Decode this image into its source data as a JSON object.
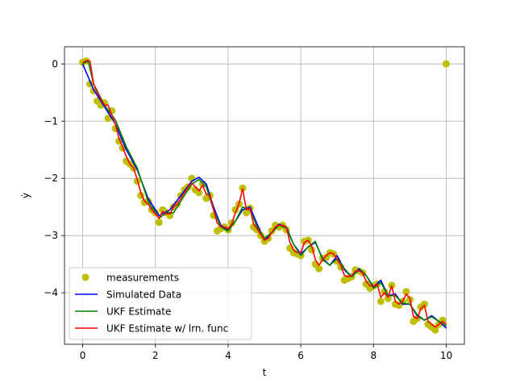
{
  "chart_data": {
    "type": "line",
    "title": "",
    "xlabel": "t",
    "ylabel": "ẏ",
    "xlim": [
      -0.5,
      10.5
    ],
    "ylim": [
      -4.9,
      0.3
    ],
    "xticks": [
      0,
      2,
      4,
      6,
      8,
      10
    ],
    "yticks": [
      0,
      -1,
      -2,
      -3,
      -4
    ],
    "xtick_labels": [
      "0",
      "2",
      "4",
      "6",
      "8",
      "10"
    ],
    "ytick_labels": [
      "0",
      "−1",
      "−2",
      "−3",
      "−4"
    ],
    "grid": true,
    "legend_position": "lower-left",
    "series": [
      {
        "name": "measurements",
        "kind": "scatter",
        "color": "#bfbf00",
        "x": [
          0.0,
          0.1,
          0.2,
          0.3,
          0.4,
          0.5,
          0.6,
          0.7,
          0.8,
          0.9,
          1.0,
          1.1,
          1.2,
          1.3,
          1.4,
          1.5,
          1.6,
          1.7,
          1.8,
          1.9,
          2.0,
          2.1,
          2.2,
          2.3,
          2.4,
          2.5,
          2.6,
          2.7,
          2.8,
          2.9,
          3.0,
          3.1,
          3.2,
          3.3,
          3.4,
          3.5,
          3.6,
          3.7,
          3.8,
          3.9,
          4.0,
          4.1,
          4.2,
          4.3,
          4.4,
          4.5,
          4.6,
          4.7,
          4.8,
          4.9,
          5.0,
          5.1,
          5.2,
          5.3,
          5.4,
          5.5,
          5.6,
          5.7,
          5.8,
          5.9,
          6.0,
          6.1,
          6.2,
          6.3,
          6.4,
          6.5,
          6.6,
          6.7,
          6.8,
          6.9,
          7.0,
          7.1,
          7.2,
          7.3,
          7.4,
          7.5,
          7.6,
          7.7,
          7.8,
          7.9,
          8.0,
          8.1,
          8.2,
          8.3,
          8.4,
          8.5,
          8.6,
          8.7,
          8.8,
          8.9,
          9.0,
          9.1,
          9.2,
          9.3,
          9.4,
          9.5,
          9.6,
          9.7,
          9.8,
          9.9,
          10.0
        ],
        "y": [
          0.03,
          0.05,
          -0.35,
          -0.47,
          -0.65,
          -0.72,
          -0.68,
          -0.95,
          -0.82,
          -1.13,
          -1.35,
          -1.47,
          -1.7,
          -1.75,
          -1.82,
          -2.05,
          -2.3,
          -2.42,
          -2.4,
          -2.55,
          -2.6,
          -2.77,
          -2.55,
          -2.6,
          -2.65,
          -2.5,
          -2.45,
          -2.3,
          -2.2,
          -2.15,
          -2.0,
          -2.2,
          -2.25,
          -2.1,
          -2.35,
          -2.3,
          -2.65,
          -2.92,
          -2.88,
          -2.85,
          -2.9,
          -2.78,
          -2.55,
          -2.45,
          -2.17,
          -2.6,
          -2.52,
          -2.85,
          -2.9,
          -3.0,
          -3.1,
          -3.05,
          -2.92,
          -2.82,
          -2.85,
          -2.82,
          -2.9,
          -3.22,
          -3.3,
          -3.32,
          -3.35,
          -3.1,
          -3.08,
          -3.25,
          -3.5,
          -3.58,
          -3.4,
          -3.38,
          -3.3,
          -3.32,
          -3.45,
          -3.55,
          -3.78,
          -3.75,
          -3.72,
          -3.6,
          -3.62,
          -3.65,
          -3.85,
          -3.92,
          -3.88,
          -3.85,
          -4.15,
          -3.98,
          -4.1,
          -3.87,
          -4.2,
          -4.22,
          -4.15,
          -3.98,
          -4.12,
          -4.5,
          -4.45,
          -4.25,
          -4.2,
          -4.55,
          -4.6,
          -4.65,
          -4.55,
          -4.48,
          0.0
        ]
      },
      {
        "name": "Simulated Data",
        "kind": "line",
        "color": "#0000ff",
        "x": [
          0.0,
          0.3,
          0.6,
          0.9,
          1.2,
          1.5,
          1.8,
          2.1,
          2.4,
          2.7,
          3.0,
          3.2,
          3.4,
          3.6,
          3.8,
          4.0,
          4.2,
          4.4,
          4.6,
          4.8,
          5.0,
          5.2,
          5.4,
          5.6,
          5.8,
          6.0,
          6.2,
          6.4,
          6.6,
          6.8,
          7.0,
          7.2,
          7.4,
          7.6,
          7.8,
          8.0,
          8.2,
          8.4,
          8.6,
          8.8,
          9.0,
          9.2,
          9.4,
          9.6,
          9.8,
          10.0
        ],
        "y": [
          0.0,
          -0.45,
          -0.75,
          -1.05,
          -1.5,
          -1.85,
          -2.35,
          -2.65,
          -2.55,
          -2.3,
          -2.05,
          -1.98,
          -2.1,
          -2.5,
          -2.82,
          -2.9,
          -2.75,
          -2.55,
          -2.5,
          -2.8,
          -3.08,
          -2.95,
          -2.8,
          -2.85,
          -3.15,
          -3.32,
          -3.2,
          -3.12,
          -3.4,
          -3.52,
          -3.35,
          -3.6,
          -3.72,
          -3.58,
          -3.7,
          -3.9,
          -3.78,
          -4.05,
          -4.02,
          -4.2,
          -4.2,
          -4.4,
          -4.48,
          -4.4,
          -4.5,
          -4.62
        ]
      },
      {
        "name": "UKF Estimate",
        "kind": "line",
        "color": "#008000",
        "x": [
          0.0,
          0.15,
          0.3,
          0.6,
          0.9,
          1.2,
          1.5,
          1.8,
          2.1,
          2.3,
          2.5,
          2.8,
          3.0,
          3.2,
          3.4,
          3.6,
          3.8,
          4.0,
          4.2,
          4.4,
          4.6,
          4.8,
          5.0,
          5.2,
          5.4,
          5.6,
          5.8,
          6.0,
          6.2,
          6.4,
          6.6,
          6.8,
          7.0,
          7.2,
          7.4,
          7.6,
          7.8,
          8.0,
          8.2,
          8.4,
          8.6,
          8.8,
          9.0,
          9.2,
          9.4,
          9.6,
          9.8,
          10.0
        ],
        "y": [
          0.0,
          0.05,
          -0.35,
          -0.72,
          -0.98,
          -1.45,
          -1.82,
          -2.4,
          -2.7,
          -2.6,
          -2.6,
          -2.3,
          -2.1,
          -2.02,
          -2.15,
          -2.55,
          -2.85,
          -2.92,
          -2.75,
          -2.5,
          -2.55,
          -2.85,
          -3.05,
          -2.95,
          -2.82,
          -2.87,
          -3.15,
          -3.35,
          -3.2,
          -3.1,
          -3.42,
          -3.52,
          -3.4,
          -3.58,
          -3.72,
          -3.6,
          -3.7,
          -3.92,
          -3.82,
          -4.05,
          -4.05,
          -4.18,
          -4.2,
          -4.38,
          -4.48,
          -4.42,
          -4.5,
          -4.58
        ]
      },
      {
        "name": "UKF Estimate w/ lrn. func",
        "kind": "line",
        "color": "#ff0000",
        "x": [
          0.0,
          0.1,
          0.2,
          0.3,
          0.4,
          0.5,
          0.6,
          0.7,
          0.8,
          0.9,
          1.0,
          1.1,
          1.2,
          1.3,
          1.4,
          1.5,
          1.6,
          1.7,
          1.8,
          1.9,
          2.0,
          2.1,
          2.2,
          2.3,
          2.4,
          2.5,
          2.6,
          2.7,
          2.8,
          2.9,
          3.0,
          3.1,
          3.2,
          3.3,
          3.4,
          3.5,
          3.6,
          3.7,
          3.8,
          3.9,
          4.0,
          4.1,
          4.2,
          4.3,
          4.4,
          4.5,
          4.6,
          4.7,
          4.8,
          4.9,
          5.0,
          5.1,
          5.2,
          5.3,
          5.4,
          5.5,
          5.6,
          5.7,
          5.8,
          5.9,
          6.0,
          6.1,
          6.2,
          6.3,
          6.4,
          6.5,
          6.6,
          6.7,
          6.8,
          6.9,
          7.0,
          7.1,
          7.2,
          7.3,
          7.4,
          7.5,
          7.6,
          7.7,
          7.8,
          7.9,
          8.0,
          8.1,
          8.2,
          8.3,
          8.4,
          8.5,
          8.6,
          8.7,
          8.8,
          8.9,
          9.0,
          9.1,
          9.2,
          9.3,
          9.4,
          9.5,
          9.6,
          9.7,
          9.8,
          9.9,
          10.0
        ],
        "y": [
          0.02,
          0.06,
          0.05,
          -0.35,
          -0.5,
          -0.62,
          -0.72,
          -0.72,
          -0.9,
          -1.05,
          -1.3,
          -1.45,
          -1.62,
          -1.75,
          -1.82,
          -2.02,
          -2.25,
          -2.4,
          -2.45,
          -2.55,
          -2.62,
          -2.7,
          -2.58,
          -2.62,
          -2.62,
          -2.5,
          -2.45,
          -2.35,
          -2.25,
          -2.15,
          -2.08,
          -2.15,
          -2.22,
          -2.12,
          -2.28,
          -2.3,
          -2.55,
          -2.78,
          -2.85,
          -2.85,
          -2.88,
          -2.8,
          -2.6,
          -2.45,
          -2.18,
          -2.55,
          -2.52,
          -2.8,
          -2.88,
          -2.98,
          -3.08,
          -3.05,
          -2.95,
          -2.85,
          -2.82,
          -2.82,
          -2.85,
          -3.12,
          -3.25,
          -3.3,
          -3.3,
          -3.12,
          -3.08,
          -3.18,
          -3.42,
          -3.52,
          -3.42,
          -3.35,
          -3.3,
          -3.32,
          -3.42,
          -3.52,
          -3.7,
          -3.72,
          -3.7,
          -3.62,
          -3.62,
          -3.65,
          -3.8,
          -3.88,
          -3.88,
          -3.85,
          -4.08,
          -4.0,
          -4.08,
          -3.88,
          -4.15,
          -4.2,
          -4.15,
          -4.02,
          -4.1,
          -4.42,
          -4.45,
          -4.28,
          -4.22,
          -4.5,
          -4.55,
          -4.6,
          -4.55,
          -4.5,
          -4.55
        ]
      }
    ]
  }
}
